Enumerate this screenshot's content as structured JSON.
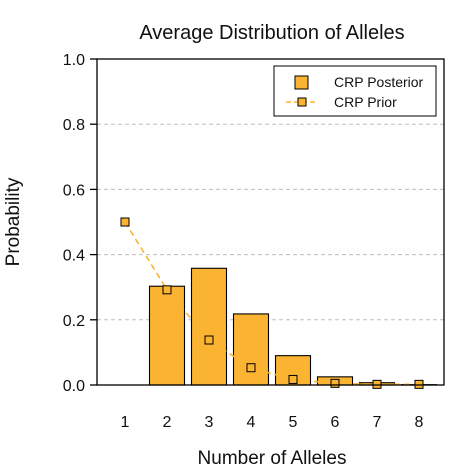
{
  "chart_data": {
    "type": "bar",
    "title": "Average Distribution of Alleles",
    "xlabel": "Number of Alleles",
    "ylabel": "Probability",
    "categories": [
      "1",
      "2",
      "3",
      "4",
      "5",
      "6",
      "7",
      "8"
    ],
    "ylim": [
      0,
      1.0
    ],
    "yticks": [
      "0.0",
      "0.2",
      "0.4",
      "0.6",
      "0.8",
      "1.0"
    ],
    "grid": "horizontal dashed",
    "legend_position": "top-right",
    "series": [
      {
        "name": "CRP Posterior",
        "type": "bar",
        "color": "#FBB432",
        "values": [
          0.0,
          0.303,
          0.358,
          0.218,
          0.09,
          0.025,
          0.007,
          0.001
        ]
      },
      {
        "name": "CRP Prior",
        "type": "line",
        "style": "dashed",
        "marker": "square",
        "color": "#FBB432",
        "values": [
          0.5,
          0.292,
          0.138,
          0.053,
          0.017,
          0.005,
          0.002,
          0.002
        ]
      }
    ]
  }
}
